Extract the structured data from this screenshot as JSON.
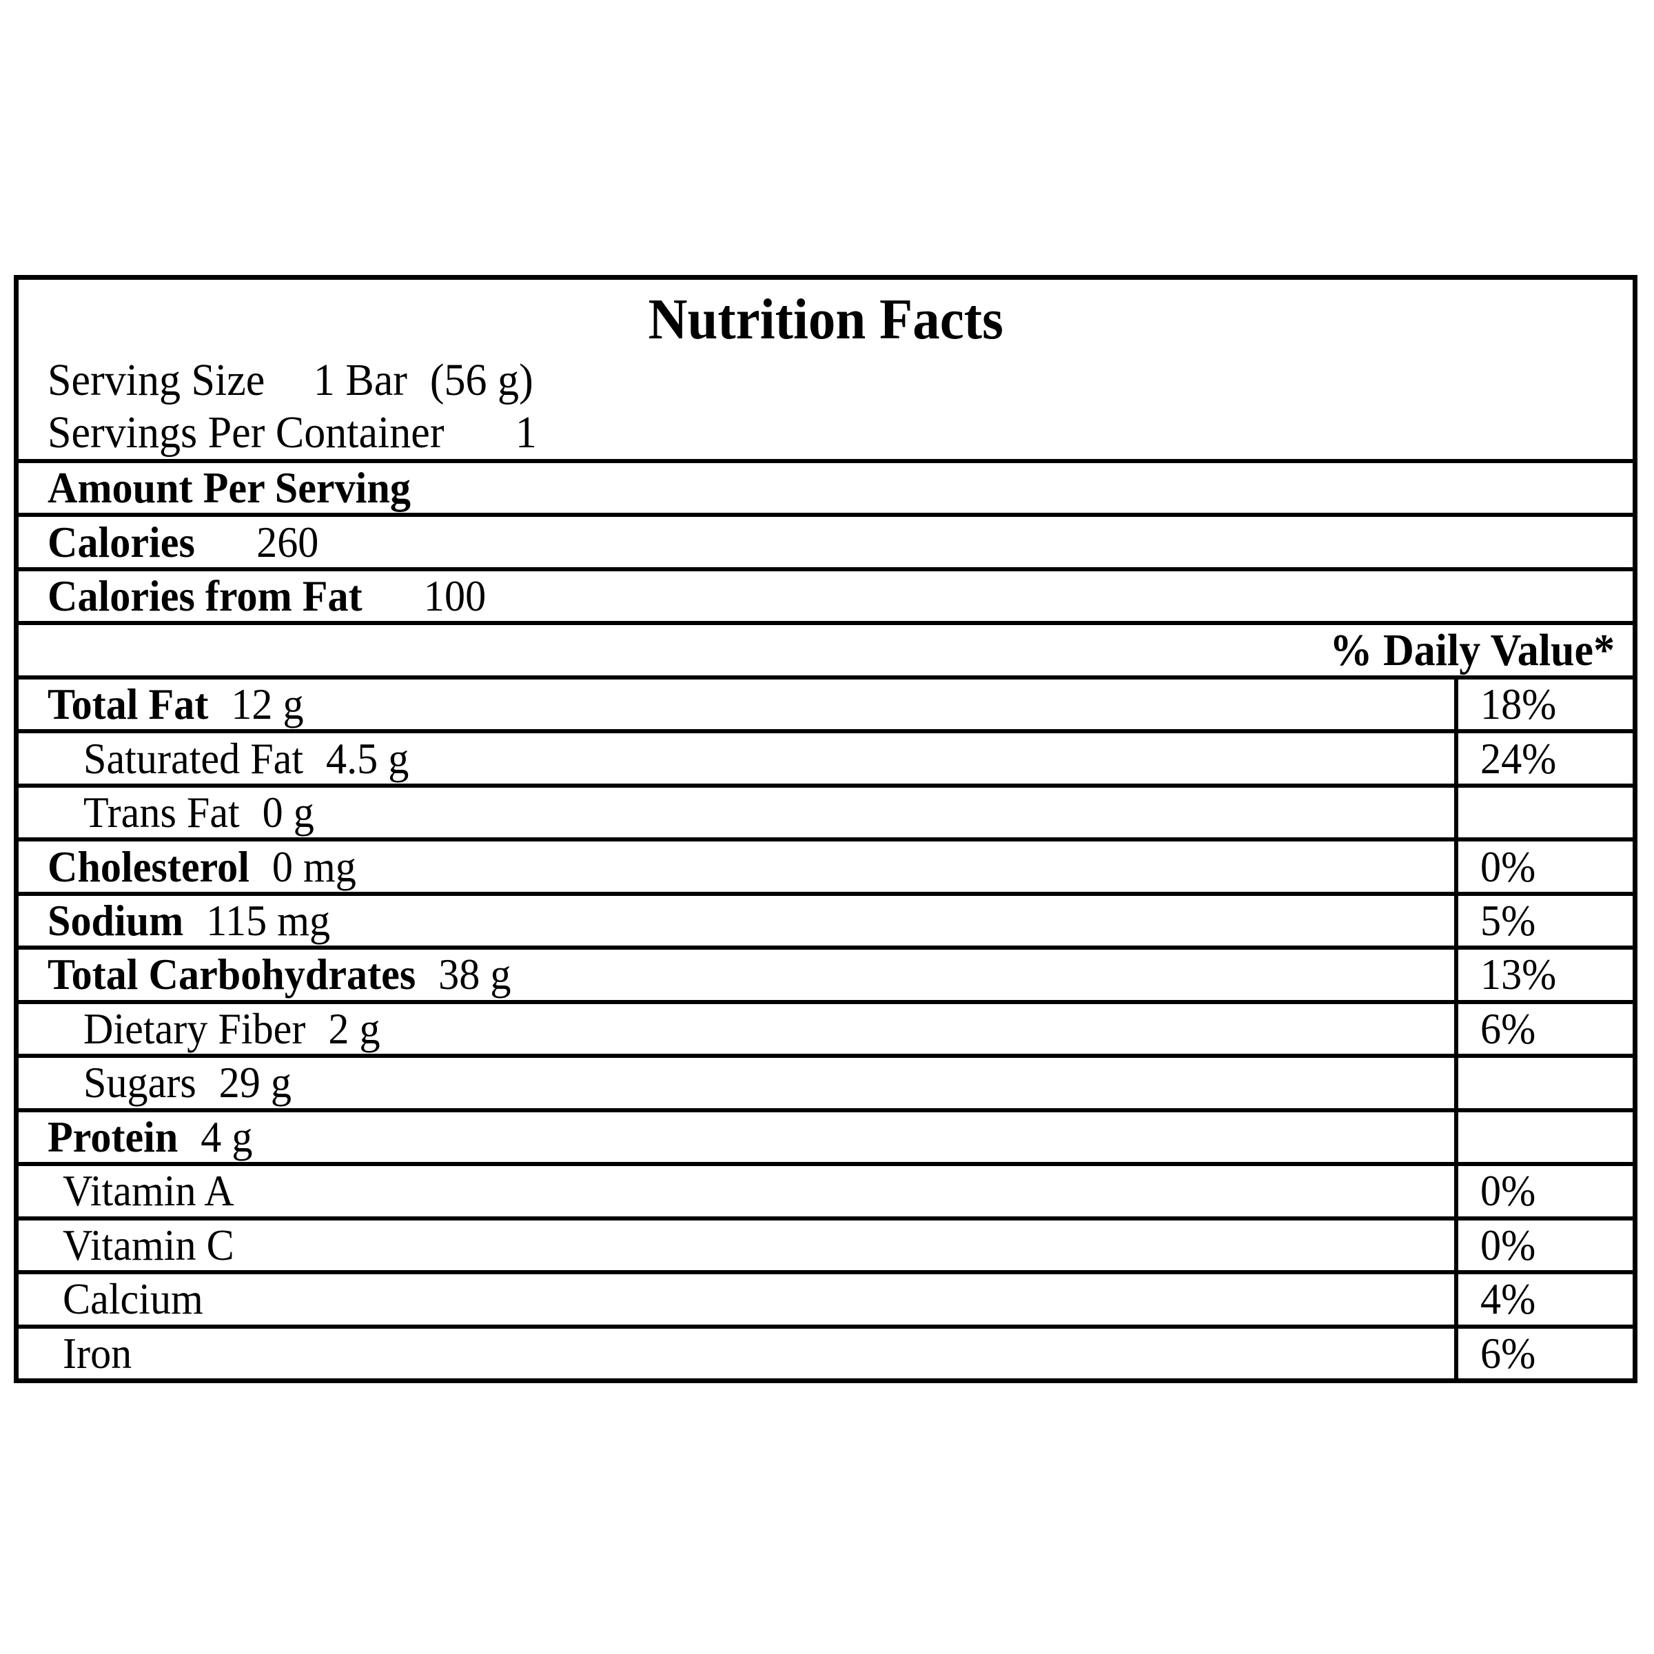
{
  "title": "Nutrition Facts",
  "serving_size": {
    "label": "Serving Size",
    "value": "1 Bar",
    "weight": "(56 g)"
  },
  "servings_per_container": {
    "label": "Servings Per Container",
    "value": "1"
  },
  "amount_per_serving": "Amount Per Serving",
  "calories": {
    "label": "Calories",
    "value": "260"
  },
  "calories_from_fat": {
    "label": "Calories from Fat",
    "value": "100"
  },
  "daily_value_header": "% Daily Value*",
  "rows": [
    {
      "label": "Total Fat",
      "value": "12 g",
      "percent": "18%"
    },
    {
      "label": "Saturated Fat",
      "value": "4.5 g",
      "percent": "24%"
    },
    {
      "label": "Trans Fat",
      "value": "0 g",
      "percent": ""
    },
    {
      "label": "Cholesterol",
      "value": "0 mg",
      "percent": "0%"
    },
    {
      "label": "Sodium",
      "value": "115 mg",
      "percent": "5%"
    },
    {
      "label": "Total Carbohydrates",
      "value": "38 g",
      "percent": "13%"
    },
    {
      "label": "Dietary Fiber",
      "value": "2 g",
      "percent": "6%"
    },
    {
      "label": "Sugars",
      "value": "29 g",
      "percent": ""
    },
    {
      "label": "Protein",
      "value": "4 g",
      "percent": ""
    },
    {
      "label": "Vitamin A",
      "value": "",
      "percent": "0%"
    },
    {
      "label": "Vitamin C",
      "value": "",
      "percent": "0%"
    },
    {
      "label": "Calcium",
      "value": "",
      "percent": "4%"
    },
    {
      "label": "Iron",
      "value": "",
      "percent": "6%"
    }
  ],
  "colors": {
    "text": "#000000",
    "background": "#ffffff",
    "border": "#000000"
  }
}
